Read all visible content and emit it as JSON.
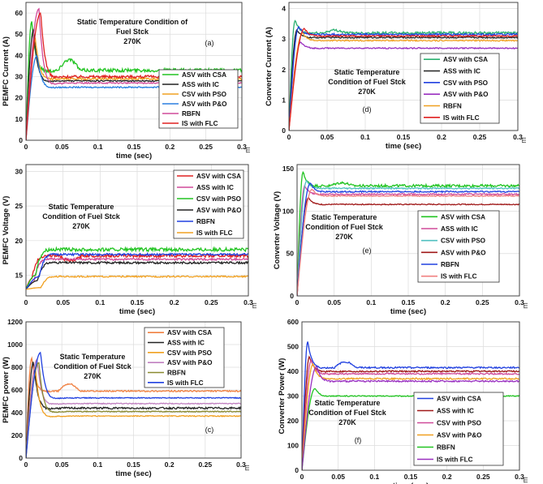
{
  "figure": "PEMFC and converter responses under static temperature condition of fuel stack",
  "chart_data": [
    {
      "id": "a",
      "type": "line",
      "tag": "(a)",
      "annotation": [
        "Static Temperature Condition of",
        "Fuel Stck",
        "270K"
      ],
      "xlabel": "time (sec)",
      "ylabel": "PEMFC Current (A)",
      "right_mark": "m",
      "xlim": [
        0,
        0.3
      ],
      "ylim": [
        0,
        65
      ],
      "xticks": [
        "0",
        "0.05",
        "0.1",
        "0.15",
        "0.2",
        "0.25",
        "0.3"
      ],
      "yticks": [
        "0",
        "10",
        "20",
        "30",
        "40",
        "50",
        "60"
      ],
      "series": [
        {
          "name": "ASV with CSA",
          "color": "#22c422",
          "final": 33,
          "peak": 56,
          "ripple": 0.8
        },
        {
          "name": "ASS with IC",
          "color": "#222222",
          "final": 28,
          "peak": 52,
          "ripple": 0.3
        },
        {
          "name": "CSV with PSO",
          "color": "#f0a020",
          "final": 29,
          "peak": 48,
          "ripple": 0.5
        },
        {
          "name": "ASV with P&O",
          "color": "#2a7fe0",
          "final": 25,
          "peak": 40,
          "ripple": 0.3
        },
        {
          "name": "RBFN",
          "color": "#d04a9a",
          "final": 27,
          "peak": 62,
          "ripple": 0.3
        },
        {
          "name": "IS with FLC",
          "color": "#e02020",
          "final": 30,
          "peak": 60,
          "ripple": 0.6
        }
      ]
    },
    {
      "id": "d",
      "type": "line",
      "tag": "(d)",
      "annotation": [
        "Static Temperature",
        "Condition of Fuel Stck",
        "270K"
      ],
      "xlabel": "time (sec)",
      "ylabel": "Converter Current (A)",
      "right_mark": "m",
      "xlim": [
        0,
        0.3
      ],
      "ylim": [
        0,
        4.2
      ],
      "xticks": [
        "0",
        "0.05",
        "0.1",
        "0.15",
        "0.2",
        "0.25",
        "0.3"
      ],
      "yticks": [
        "0",
        "1",
        "2",
        "3",
        "4"
      ],
      "series": [
        {
          "name": "ASV with CSA",
          "color": "#2ab070",
          "final": 3.2,
          "peak": 3.6,
          "ripple": 0.04
        },
        {
          "name": "ASS with IC",
          "color": "#222222",
          "final": 3.05,
          "peak": 3.3,
          "ripple": 0.02
        },
        {
          "name": "CSV with PSO",
          "color": "#2040e0",
          "final": 3.15,
          "peak": 3.4,
          "ripple": 0.03
        },
        {
          "name": "ASV with P&O",
          "color": "#9a30c0",
          "final": 2.7,
          "peak": 2.9,
          "ripple": 0.02
        },
        {
          "name": "RBFN",
          "color": "#f0a020",
          "final": 2.95,
          "peak": 3.2,
          "ripple": 0.02
        },
        {
          "name": "IS with FLC",
          "color": "#e02020",
          "final": 3.1,
          "peak": 3.35,
          "ripple": 0.02
        }
      ]
    },
    {
      "id": "b",
      "type": "line",
      "tag": "(b)",
      "annotation": [
        "Static Temperature",
        "Condition of Fuel Stck",
        "270K"
      ],
      "xlabel": "time (sec)",
      "ylabel": "PEMFC Voltage (V)",
      "right_mark": "m",
      "xlim": [
        0,
        0.3
      ],
      "ylim": [
        12,
        31
      ],
      "xticks": [
        "0",
        "0.05",
        "0.1",
        "0.15",
        "0.2",
        "0.25",
        "0.3"
      ],
      "yticks": [
        "15",
        "20",
        "25",
        "30"
      ],
      "series": [
        {
          "name": "ASV with CSA",
          "color": "#e02020",
          "final": 17.8,
          "peak": 14.5,
          "ripple": 0.2
        },
        {
          "name": "ASS with IC",
          "color": "#d04a9a",
          "final": 17.3,
          "peak": 14.0,
          "ripple": 0.15
        },
        {
          "name": "CSV with PSO",
          "color": "#22c422",
          "final": 18.7,
          "peak": 15.0,
          "ripple": 0.25
        },
        {
          "name": "ASV with P&O",
          "color": "#222222",
          "final": 16.8,
          "peak": 14.2,
          "ripple": 0.15
        },
        {
          "name": "RBFN",
          "color": "#2040e0",
          "final": 18.0,
          "peak": 14.8,
          "ripple": 0.15
        },
        {
          "name": "IS with FLC",
          "color": "#f0a020",
          "final": 14.8,
          "peak": 13.2,
          "ripple": 0.1
        }
      ]
    },
    {
      "id": "e",
      "type": "line",
      "tag": "(e)",
      "annotation": [
        "Static Temperature",
        "Condition of Fuel Stck",
        "270K"
      ],
      "xlabel": "time (sec)",
      "ylabel": "Converter Voltage (V)",
      "right_mark": "m",
      "xlim": [
        0,
        0.3
      ],
      "ylim": [
        0,
        155
      ],
      "xticks": [
        "0",
        "0.05",
        "0.1",
        "0.15",
        "0.2",
        "0.25",
        "0.3"
      ],
      "yticks": [
        "0",
        "50",
        "100",
        "150"
      ],
      "series": [
        {
          "name": "ASV with CSA",
          "color": "#22c422",
          "final": 130,
          "peak": 146,
          "ripple": 1.5
        },
        {
          "name": "ASS with IC",
          "color": "#d04a9a",
          "final": 120,
          "peak": 130,
          "ripple": 0.8
        },
        {
          "name": "CSV with PSO",
          "color": "#50c0c0",
          "final": 127,
          "peak": 136,
          "ripple": 0.8
        },
        {
          "name": "ASV with P&O",
          "color": "#a01818",
          "final": 108,
          "peak": 116,
          "ripple": 0.6
        },
        {
          "name": "RBFN",
          "color": "#2040e0",
          "final": 123,
          "peak": 133,
          "ripple": 0.8
        },
        {
          "name": "IS with FLC",
          "color": "#f08080",
          "final": 118,
          "peak": 126,
          "ripple": 0.6
        }
      ]
    },
    {
      "id": "c",
      "type": "line",
      "tag": "(c)",
      "annotation": [
        "Static Temperature",
        "Condition of Fuel Stck",
        "270K"
      ],
      "xlabel": "time (sec)",
      "ylabel": "PEMFC power (W)",
      "right_mark": "m",
      "xlim": [
        0,
        0.3
      ],
      "ylim": [
        0,
        1200
      ],
      "xticks": [
        "0",
        "0.05",
        "0.1",
        "0.15",
        "0.2",
        "0.25",
        "0.3"
      ],
      "yticks": [
        "0",
        "200",
        "400",
        "600",
        "800",
        "1000",
        "1200"
      ],
      "series": [
        {
          "name": "ASV with CSA",
          "color": "#f08040",
          "final": 590,
          "peak": 880,
          "ripple": 6
        },
        {
          "name": "ASS with IC",
          "color": "#222222",
          "final": 440,
          "peak": 850,
          "ripple": 8
        },
        {
          "name": "CSV with PSO",
          "color": "#f0a020",
          "final": 370,
          "peak": 800,
          "ripple": 4
        },
        {
          "name": "ASV with P&O",
          "color": "#c080c0",
          "final": 480,
          "peak": 870,
          "ripple": 4
        },
        {
          "name": "RBFN",
          "color": "#8a8a30",
          "final": 410,
          "peak": 840,
          "ripple": 4
        },
        {
          "name": "IS with FLC",
          "color": "#2040e0",
          "final": 530,
          "peak": 930,
          "ripple": 4
        }
      ]
    },
    {
      "id": "f",
      "type": "line",
      "tag": "(f)",
      "annotation": [
        "Static Temperature",
        "Condition of Fuel Stck",
        "270K"
      ],
      "xlabel": "time (sec)",
      "ylabel": "Converter Power (W)",
      "right_mark": "m",
      "xlim": [
        0,
        0.3
      ],
      "ylim": [
        0,
        600
      ],
      "xticks": [
        "0",
        "0.05",
        "0.1",
        "0.15",
        "0.2",
        "0.25",
        "0.3"
      ],
      "yticks": [
        "0",
        "100",
        "200",
        "300",
        "400",
        "500",
        "600"
      ],
      "series": [
        {
          "name": "ASV with CSA",
          "color": "#2040e0",
          "final": 415,
          "peak": 520,
          "ripple": 3
        },
        {
          "name": "ASS with IC",
          "color": "#a01818",
          "final": 400,
          "peak": 460,
          "ripple": 3
        },
        {
          "name": "CSV with PSO",
          "color": "#d04a9a",
          "final": 390,
          "peak": 445,
          "ripple": 3
        },
        {
          "name": "ASV with P&O",
          "color": "#f0a020",
          "final": 370,
          "peak": 430,
          "ripple": 3
        },
        {
          "name": "RBFN",
          "color": "#22c422",
          "final": 300,
          "peak": 330,
          "ripple": 2
        },
        {
          "name": "IS with FLC",
          "color": "#9a30c0",
          "final": 360,
          "peak": 420,
          "ripple": 3
        }
      ]
    }
  ]
}
